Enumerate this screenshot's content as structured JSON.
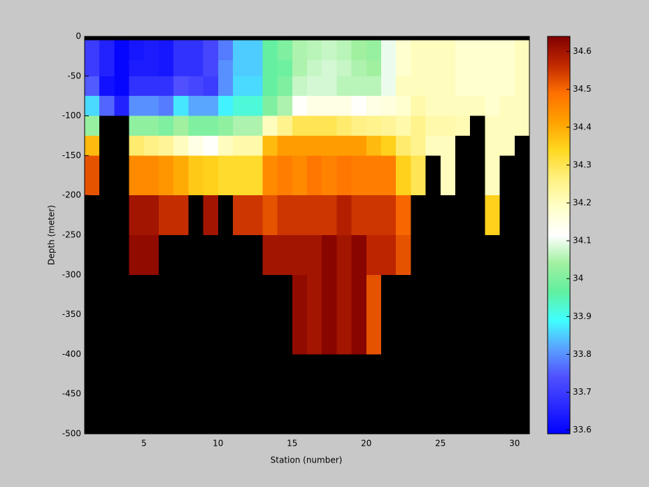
{
  "chart_data": {
    "type": "heatmap",
    "xlabel": "Station (number)",
    "ylabel": "Depth (meter)",
    "xlim": [
      1,
      31
    ],
    "ylim": [
      -500,
      0
    ],
    "xticks": [
      5,
      10,
      15,
      20,
      25,
      30
    ],
    "yticks": [
      0,
      -50,
      -100,
      -150,
      -200,
      -250,
      -300,
      -350,
      -400,
      -450,
      -500
    ],
    "clim": [
      33.59,
      34.64
    ],
    "cticks": [
      33.6,
      33.7,
      33.8,
      33.9,
      34,
      34.1,
      34.2,
      34.3,
      34.4,
      34.5,
      34.6
    ],
    "colormap": [
      "#0000ff",
      "#2a2aff",
      "#5050ff",
      "#5aa0ff",
      "#40ffff",
      "#60f0a0",
      "#a0f0a0",
      "#ffffff",
      "#ffffc8",
      "#fff080",
      "#ffd820",
      "#ffa000",
      "#ff7000",
      "#c02800",
      "#800000"
    ],
    "missing_color": "#000000",
    "x": [
      1,
      2,
      3,
      4,
      5,
      6,
      7,
      8,
      9,
      10,
      11,
      12,
      13,
      14,
      15,
      16,
      17,
      18,
      19,
      20,
      21,
      22,
      23,
      24,
      25,
      26,
      27,
      28,
      29,
      30,
      31
    ],
    "y": [
      0,
      -5,
      -30,
      -50,
      -75,
      -100,
      -125,
      -150,
      -175,
      -200,
      -225,
      -250,
      -275,
      -300,
      -325,
      -350,
      -375,
      -400
    ],
    "values": [
      [
        null,
        null,
        null,
        null,
        null,
        null,
        null,
        null,
        null,
        null,
        null,
        null,
        null,
        null,
        null,
        null,
        null,
        null,
        null,
        null,
        null,
        null,
        null,
        null,
        null,
        null,
        null,
        null,
        null,
        null
      ],
      [
        33.7,
        33.65,
        33.6,
        33.63,
        33.64,
        33.63,
        33.68,
        33.68,
        33.72,
        33.78,
        33.85,
        33.85,
        33.97,
        34.0,
        34.05,
        34.06,
        34.07,
        34.06,
        34.04,
        34.03,
        34.1,
        34.18,
        34.2,
        34.2,
        34.2,
        34.18,
        34.18,
        34.18,
        34.18,
        34.2
      ],
      [
        33.7,
        33.65,
        33.6,
        33.64,
        33.64,
        33.63,
        33.68,
        33.68,
        33.72,
        33.8,
        33.85,
        33.85,
        33.97,
        33.98,
        34.05,
        34.07,
        34.08,
        34.07,
        34.05,
        34.04,
        34.1,
        34.18,
        34.2,
        34.2,
        34.2,
        34.18,
        34.18,
        34.18,
        34.18,
        34.2
      ],
      [
        33.75,
        33.62,
        33.6,
        33.68,
        33.68,
        33.68,
        33.74,
        33.72,
        33.7,
        33.8,
        33.86,
        33.86,
        33.97,
        34.0,
        34.07,
        34.08,
        34.08,
        34.06,
        34.06,
        34.06,
        34.1,
        34.2,
        34.2,
        34.2,
        34.2,
        34.18,
        34.18,
        34.18,
        34.18,
        34.2
      ],
      [
        33.86,
        33.76,
        33.65,
        33.8,
        33.8,
        33.78,
        33.87,
        33.82,
        33.82,
        33.88,
        33.92,
        33.92,
        34.0,
        34.05,
        34.12,
        34.15,
        34.15,
        34.15,
        34.12,
        34.15,
        34.16,
        34.18,
        34.22,
        34.2,
        34.2,
        34.2,
        34.2,
        34.18,
        34.2,
        34.2
      ],
      [
        34.03,
        null,
        null,
        34.02,
        34.02,
        34.0,
        34.04,
        34.0,
        34.0,
        34.02,
        34.05,
        34.05,
        34.2,
        34.25,
        34.3,
        34.3,
        34.3,
        34.28,
        34.26,
        34.25,
        34.24,
        34.22,
        34.25,
        34.22,
        34.22,
        34.21,
        null,
        34.2,
        34.2,
        34.2
      ],
      [
        34.38,
        null,
        null,
        34.28,
        34.26,
        34.24,
        34.2,
        34.15,
        34.12,
        34.2,
        34.22,
        34.22,
        34.38,
        34.42,
        34.42,
        34.42,
        34.42,
        34.42,
        34.42,
        34.38,
        34.35,
        34.28,
        34.25,
        34.2,
        34.2,
        null,
        null,
        34.2,
        34.2,
        null
      ],
      [
        34.52,
        null,
        null,
        34.45,
        34.45,
        34.43,
        34.4,
        34.36,
        34.35,
        34.33,
        34.33,
        34.33,
        34.45,
        34.47,
        34.45,
        34.48,
        34.46,
        34.48,
        34.47,
        34.47,
        34.47,
        34.35,
        34.3,
        null,
        34.2,
        null,
        null,
        34.2,
        null,
        null
      ],
      [
        34.52,
        null,
        null,
        34.45,
        34.45,
        34.43,
        34.4,
        34.36,
        34.35,
        34.33,
        34.33,
        34.33,
        34.45,
        34.47,
        34.45,
        34.48,
        34.46,
        34.48,
        34.47,
        34.47,
        34.47,
        34.35,
        34.3,
        null,
        34.2,
        null,
        null,
        34.2,
        null,
        null
      ],
      [
        null,
        null,
        null,
        34.6,
        34.6,
        34.56,
        34.56,
        null,
        34.6,
        null,
        34.55,
        34.55,
        34.52,
        34.55,
        34.55,
        34.55,
        34.55,
        34.58,
        34.55,
        34.55,
        34.55,
        34.5,
        null,
        null,
        null,
        null,
        null,
        34.35,
        null,
        null
      ],
      [
        null,
        null,
        null,
        34.6,
        34.6,
        34.56,
        34.56,
        null,
        34.6,
        null,
        34.55,
        34.55,
        34.52,
        34.55,
        34.55,
        34.55,
        34.55,
        34.58,
        34.55,
        34.55,
        34.55,
        34.5,
        null,
        null,
        null,
        null,
        null,
        34.35,
        null,
        null
      ],
      [
        null,
        null,
        null,
        34.62,
        34.62,
        null,
        null,
        null,
        null,
        null,
        null,
        null,
        34.6,
        34.6,
        34.6,
        34.6,
        34.63,
        34.6,
        34.63,
        34.57,
        34.57,
        34.52,
        null,
        null,
        null,
        null,
        null,
        null,
        null,
        null
      ],
      [
        null,
        null,
        null,
        34.62,
        34.62,
        null,
        null,
        null,
        null,
        null,
        null,
        null,
        34.6,
        34.6,
        34.6,
        34.6,
        34.63,
        34.6,
        34.63,
        34.57,
        34.57,
        34.52,
        null,
        null,
        null,
        null,
        null,
        null,
        null,
        null
      ],
      [
        null,
        null,
        null,
        null,
        null,
        null,
        null,
        null,
        null,
        null,
        null,
        null,
        null,
        null,
        34.62,
        34.6,
        34.63,
        34.6,
        34.63,
        34.52,
        null,
        null,
        null,
        null,
        null,
        null,
        null,
        null,
        null,
        null
      ],
      [
        null,
        null,
        null,
        null,
        null,
        null,
        null,
        null,
        null,
        null,
        null,
        null,
        null,
        null,
        34.62,
        34.6,
        34.63,
        34.6,
        34.63,
        34.52,
        null,
        null,
        null,
        null,
        null,
        null,
        null,
        null,
        null,
        null
      ],
      [
        null,
        null,
        null,
        null,
        null,
        null,
        null,
        null,
        null,
        null,
        null,
        null,
        null,
        null,
        34.62,
        34.6,
        34.63,
        34.6,
        34.63,
        34.52,
        null,
        null,
        null,
        null,
        null,
        null,
        null,
        null,
        null,
        null
      ],
      [
        null,
        null,
        null,
        null,
        null,
        null,
        null,
        null,
        null,
        null,
        null,
        null,
        null,
        null,
        34.62,
        34.6,
        34.63,
        34.6,
        34.63,
        34.52,
        null,
        null,
        null,
        null,
        null,
        null,
        null,
        null,
        null,
        null
      ]
    ]
  }
}
